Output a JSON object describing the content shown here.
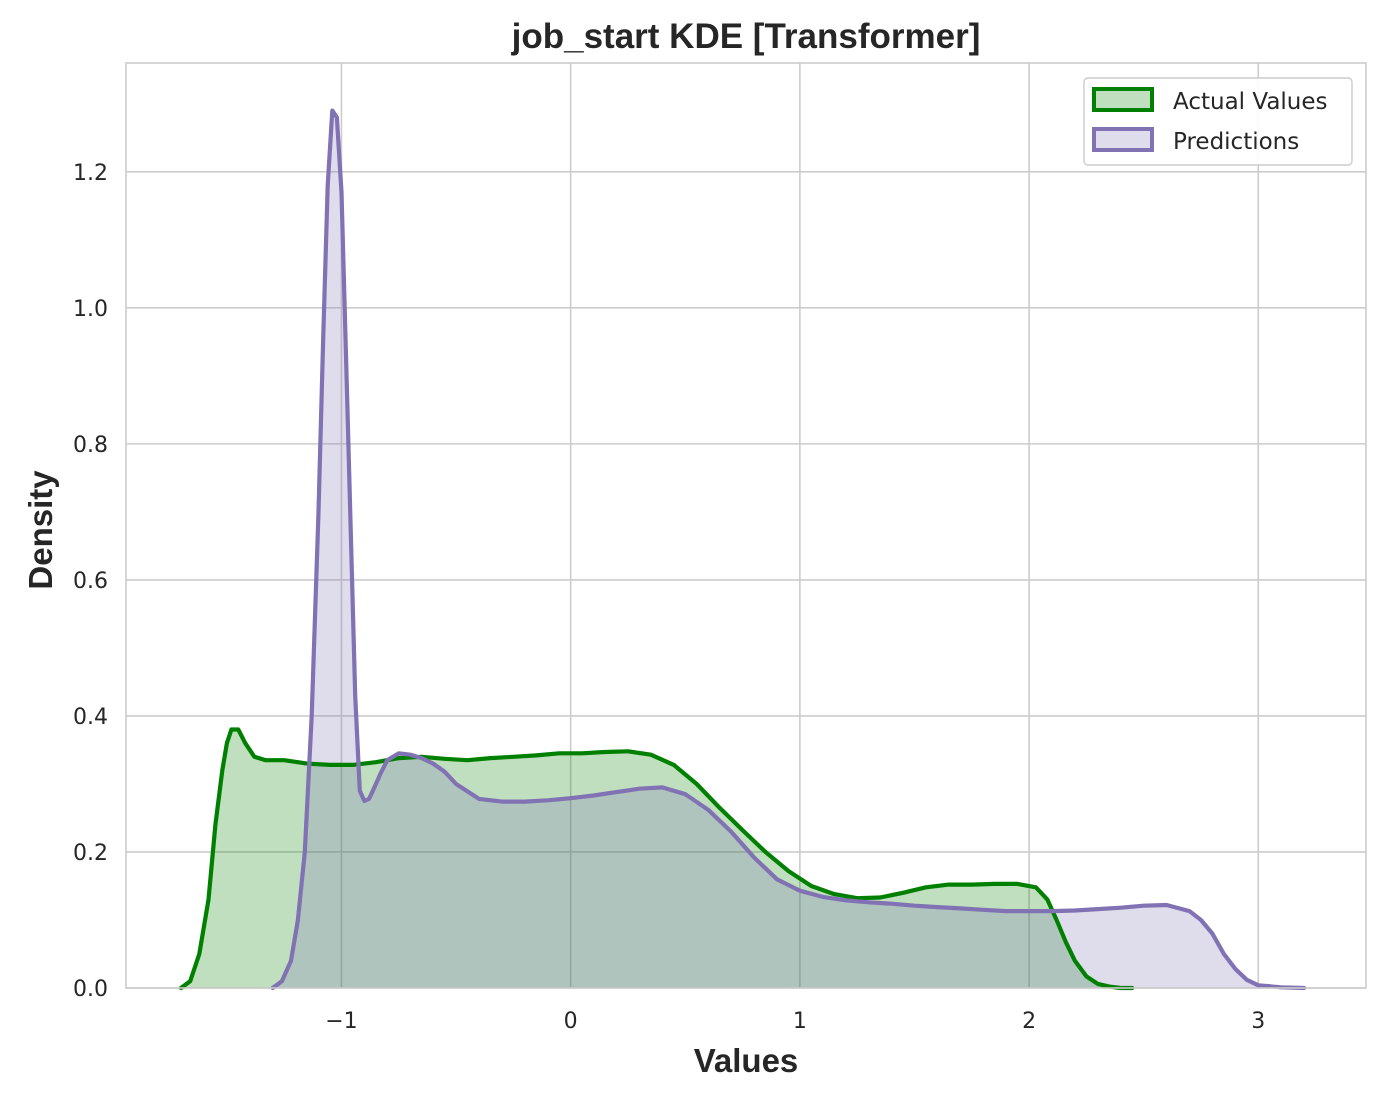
{
  "chart_data": {
    "type": "area",
    "title": "job_start KDE [Transformer]",
    "xlabel": "Values",
    "ylabel": "Density",
    "xlim": [
      -1.94,
      3.47
    ],
    "ylim": [
      0,
      1.36
    ],
    "xticks": [
      -1,
      0,
      1,
      2,
      3
    ],
    "xtick_labels": [
      "−1",
      "0",
      "1",
      "2",
      "3"
    ],
    "yticks": [
      0.0,
      0.2,
      0.4,
      0.6,
      0.8,
      1.0,
      1.2
    ],
    "ytick_labels": [
      "0.0",
      "0.2",
      "0.4",
      "0.6",
      "0.8",
      "1.0",
      "1.2"
    ],
    "grid": true,
    "legend_position": "top-right",
    "series": [
      {
        "name": "Actual Values",
        "line_color": "#008000",
        "fill_color": "#008000",
        "fill_opacity": 0.25,
        "x": [
          -1.7,
          -1.66,
          -1.62,
          -1.58,
          -1.55,
          -1.52,
          -1.5,
          -1.48,
          -1.45,
          -1.42,
          -1.38,
          -1.33,
          -1.25,
          -1.15,
          -1.05,
          -0.95,
          -0.85,
          -0.75,
          -0.65,
          -0.55,
          -0.45,
          -0.35,
          -0.25,
          -0.15,
          -0.05,
          0.05,
          0.15,
          0.25,
          0.35,
          0.45,
          0.55,
          0.65,
          0.75,
          0.85,
          0.95,
          1.05,
          1.15,
          1.25,
          1.35,
          1.45,
          1.55,
          1.65,
          1.75,
          1.85,
          1.95,
          2.03,
          2.08,
          2.12,
          2.16,
          2.2,
          2.25,
          2.3,
          2.35,
          2.4,
          2.45
        ],
        "y": [
          0.0,
          0.01,
          0.05,
          0.13,
          0.24,
          0.32,
          0.36,
          0.38,
          0.38,
          0.36,
          0.34,
          0.335,
          0.335,
          0.33,
          0.328,
          0.328,
          0.332,
          0.338,
          0.34,
          0.337,
          0.335,
          0.338,
          0.34,
          0.342,
          0.345,
          0.345,
          0.347,
          0.348,
          0.343,
          0.328,
          0.3,
          0.265,
          0.232,
          0.2,
          0.172,
          0.15,
          0.138,
          0.132,
          0.133,
          0.14,
          0.148,
          0.152,
          0.152,
          0.153,
          0.153,
          0.148,
          0.13,
          0.1,
          0.068,
          0.04,
          0.017,
          0.006,
          0.002,
          0.0,
          0.0
        ]
      },
      {
        "name": "Predictions",
        "line_color": "#8172b3",
        "fill_color": "#8172b3",
        "fill_opacity": 0.25,
        "x": [
          -1.3,
          -1.26,
          -1.22,
          -1.19,
          -1.16,
          -1.13,
          -1.1,
          -1.08,
          -1.06,
          -1.04,
          -1.02,
          -1.0,
          -0.98,
          -0.96,
          -0.94,
          -0.92,
          -0.9,
          -0.88,
          -0.86,
          -0.83,
          -0.8,
          -0.75,
          -0.7,
          -0.65,
          -0.6,
          -0.55,
          -0.5,
          -0.4,
          -0.3,
          -0.2,
          -0.1,
          0.0,
          0.1,
          0.2,
          0.3,
          0.4,
          0.5,
          0.6,
          0.7,
          0.8,
          0.9,
          1.0,
          1.1,
          1.2,
          1.3,
          1.4,
          1.5,
          1.6,
          1.7,
          1.8,
          1.9,
          2.0,
          2.1,
          2.2,
          2.3,
          2.4,
          2.5,
          2.6,
          2.7,
          2.75,
          2.8,
          2.85,
          2.9,
          2.95,
          3.0,
          3.1,
          3.2
        ],
        "y": [
          0.0,
          0.01,
          0.04,
          0.1,
          0.2,
          0.4,
          0.7,
          0.95,
          1.18,
          1.29,
          1.28,
          1.17,
          0.93,
          0.68,
          0.43,
          0.29,
          0.275,
          0.278,
          0.292,
          0.315,
          0.335,
          0.345,
          0.343,
          0.338,
          0.33,
          0.318,
          0.3,
          0.278,
          0.274,
          0.274,
          0.276,
          0.279,
          0.283,
          0.288,
          0.293,
          0.295,
          0.285,
          0.262,
          0.23,
          0.192,
          0.16,
          0.143,
          0.134,
          0.129,
          0.126,
          0.124,
          0.121,
          0.119,
          0.117,
          0.115,
          0.113,
          0.113,
          0.113,
          0.114,
          0.116,
          0.118,
          0.121,
          0.122,
          0.113,
          0.1,
          0.08,
          0.05,
          0.028,
          0.012,
          0.004,
          0.001,
          0.0
        ]
      }
    ]
  }
}
